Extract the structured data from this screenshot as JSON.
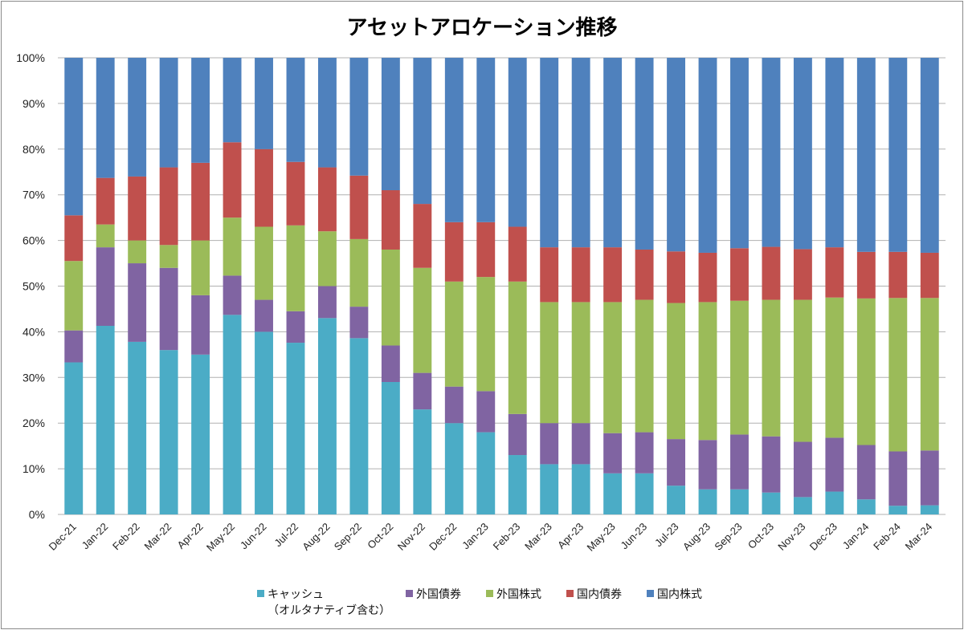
{
  "chart_data": {
    "type": "bar",
    "stacked": "percent",
    "title": "アセットアロケーション推移",
    "xlabel": "",
    "ylabel": "",
    "ylim": [
      0,
      100
    ],
    "yticks": [
      "0%",
      "10%",
      "20%",
      "30%",
      "40%",
      "50%",
      "60%",
      "70%",
      "80%",
      "90%",
      "100%"
    ],
    "grid": true,
    "legend_position": "bottom",
    "categories": [
      "Dec-21",
      "Jan-22",
      "Feb-22",
      "Mar-22",
      "Apr-22",
      "May-22",
      "Jun-22",
      "Jul-22",
      "Aug-22",
      "Sep-22",
      "Oct-22",
      "Nov-22",
      "Dec-22",
      "Jan-23",
      "Feb-23",
      "Mar-23",
      "Apr-23",
      "May-23",
      "Jun-23",
      "Jul-23",
      "Aug-23",
      "Sep-23",
      "Oct-23",
      "Nov-23",
      "Dec-23",
      "Jan-24",
      "Feb-24",
      "Mar-24"
    ],
    "series": [
      {
        "name": "キャッシュ\n（オルタナティブ含む）",
        "color": "#4BACC6",
        "values": [
          33.3,
          41.3,
          37.8,
          36.0,
          35.0,
          43.7,
          40.0,
          37.6,
          43.0,
          38.6,
          29.0,
          23.0,
          20.0,
          18.0,
          13.0,
          11.0,
          11.0,
          9.0,
          9.0,
          6.3,
          5.5,
          5.5,
          4.8,
          3.8,
          5.0,
          3.3,
          1.9,
          2.0
        ]
      },
      {
        "name": "外国債券",
        "color": "#8064A2",
        "values": [
          7.0,
          17.2,
          17.2,
          18.0,
          13.0,
          8.6,
          7.0,
          6.9,
          7.0,
          6.9,
          8.0,
          8.0,
          8.0,
          9.0,
          9.0,
          9.0,
          9.0,
          8.8,
          9.0,
          10.2,
          10.8,
          12.0,
          12.3,
          12.1,
          11.8,
          11.9,
          11.9,
          12.0
        ]
      },
      {
        "name": "外国株式",
        "color": "#9BBB59",
        "values": [
          15.2,
          5.0,
          5.0,
          5.0,
          12.0,
          12.7,
          16.0,
          18.8,
          12.0,
          14.8,
          21.0,
          23.0,
          23.0,
          25.0,
          29.0,
          26.5,
          26.5,
          28.7,
          29.0,
          29.8,
          30.2,
          29.3,
          29.9,
          31.1,
          30.7,
          32.1,
          33.6,
          33.4
        ]
      },
      {
        "name": "国内債券",
        "color": "#C0504D",
        "values": [
          10.0,
          10.2,
          14.0,
          17.0,
          17.0,
          16.5,
          17.0,
          13.9,
          14.0,
          13.9,
          13.0,
          14.0,
          13.0,
          12.0,
          12.0,
          12.0,
          12.0,
          12.0,
          11.0,
          11.3,
          10.8,
          11.5,
          11.6,
          11.1,
          11.0,
          10.2,
          10.1,
          9.9
        ]
      },
      {
        "name": "国内株式",
        "color": "#4F81BD",
        "values": [
          34.5,
          26.3,
          26.0,
          24.0,
          23.0,
          18.5,
          20.0,
          22.8,
          24.0,
          25.8,
          29.0,
          32.0,
          36.0,
          36.0,
          37.0,
          41.5,
          41.5,
          41.5,
          42.0,
          42.4,
          42.7,
          41.7,
          41.4,
          41.9,
          41.5,
          42.5,
          42.5,
          42.7
        ]
      }
    ]
  }
}
